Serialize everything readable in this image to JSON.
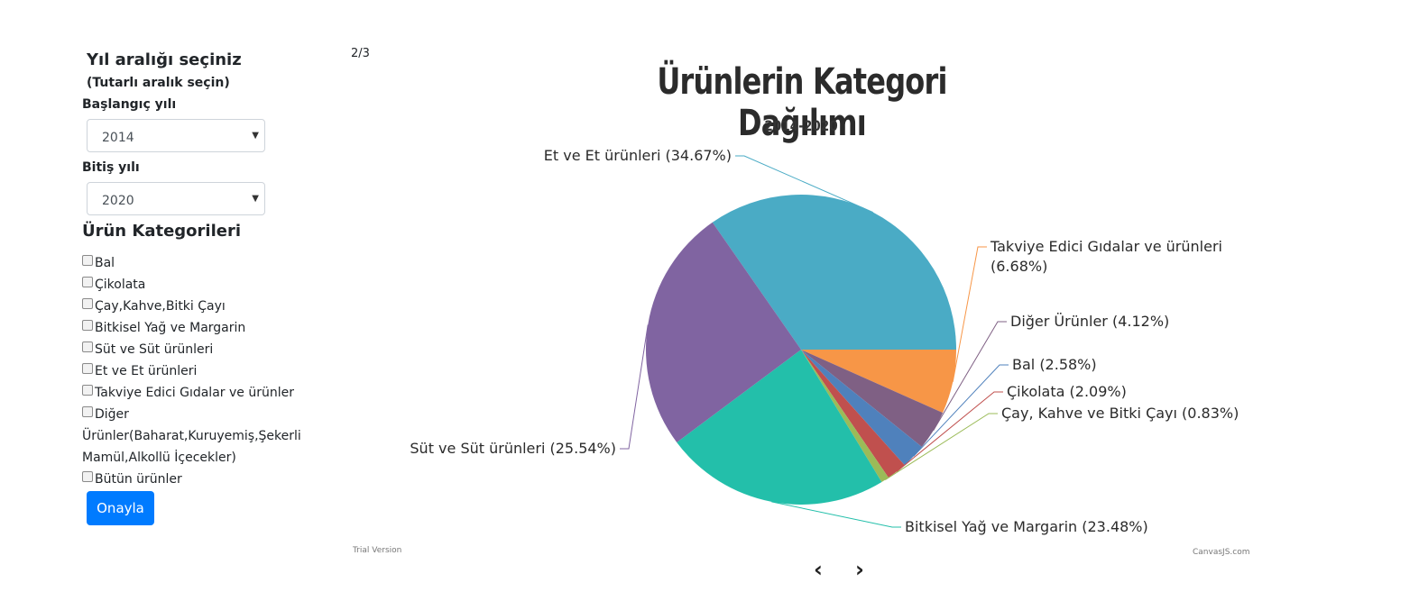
{
  "sidebar": {
    "range_title": "Yıl aralığı seçiniz",
    "range_subtitle": "(Tutarlı aralık seçin)",
    "start_label": "Başlangıç yılı",
    "start_value": "2014",
    "end_label": "Bitiş yılı",
    "end_value": "2020",
    "categories_title": "Ürün Kategorileri",
    "categories": [
      "Bal",
      "Çikolata",
      "Çay,Kahve,Bitki Çayı",
      "Bitkisel Yağ ve Margarin",
      "Süt ve Süt ürünleri",
      "Et ve Et ürünleri",
      "Takviye Edici Gıdalar ve ürünler",
      "Diğer Ürünler(Baharat,Kuruyemiş,Şekerli Mamül,Alkollü İçecekler)",
      "Bütün ürünler"
    ],
    "confirm_label": "Onayla"
  },
  "pager": {
    "indicator": "2/3",
    "prev": "‹",
    "next": "›"
  },
  "footer": {
    "trial": "Trial Version",
    "credit": "CanvasJS.com"
  },
  "chart_data": {
    "type": "pie",
    "title": "Ürünlerin Kategori Dağılımı",
    "subtitle": "2014-2020",
    "series": [
      {
        "label": "Et ve Et ürünleri",
        "value": 34.67,
        "color": "#4aabc5"
      },
      {
        "label": "Takviye Edici Gıdalar ve ürünleri",
        "value": 6.68,
        "color": "#f79647"
      },
      {
        "label": "Diğer Ürünler",
        "value": 4.12,
        "color": "#7f6084"
      },
      {
        "label": "Bal",
        "value": 2.58,
        "color": "#4f81bc"
      },
      {
        "label": "Çikolata",
        "value": 2.09,
        "color": "#c0504e"
      },
      {
        "label": "Çay, Kahve ve Bitki Çayı",
        "value": 0.83,
        "color": "#9bbb58"
      },
      {
        "label": "Bitkisel Yağ ve Margarin",
        "value": 23.48,
        "color": "#23bfaa"
      },
      {
        "label": "Süt ve Süt ürünleri",
        "value": 25.54,
        "color": "#8064a1"
      }
    ]
  }
}
